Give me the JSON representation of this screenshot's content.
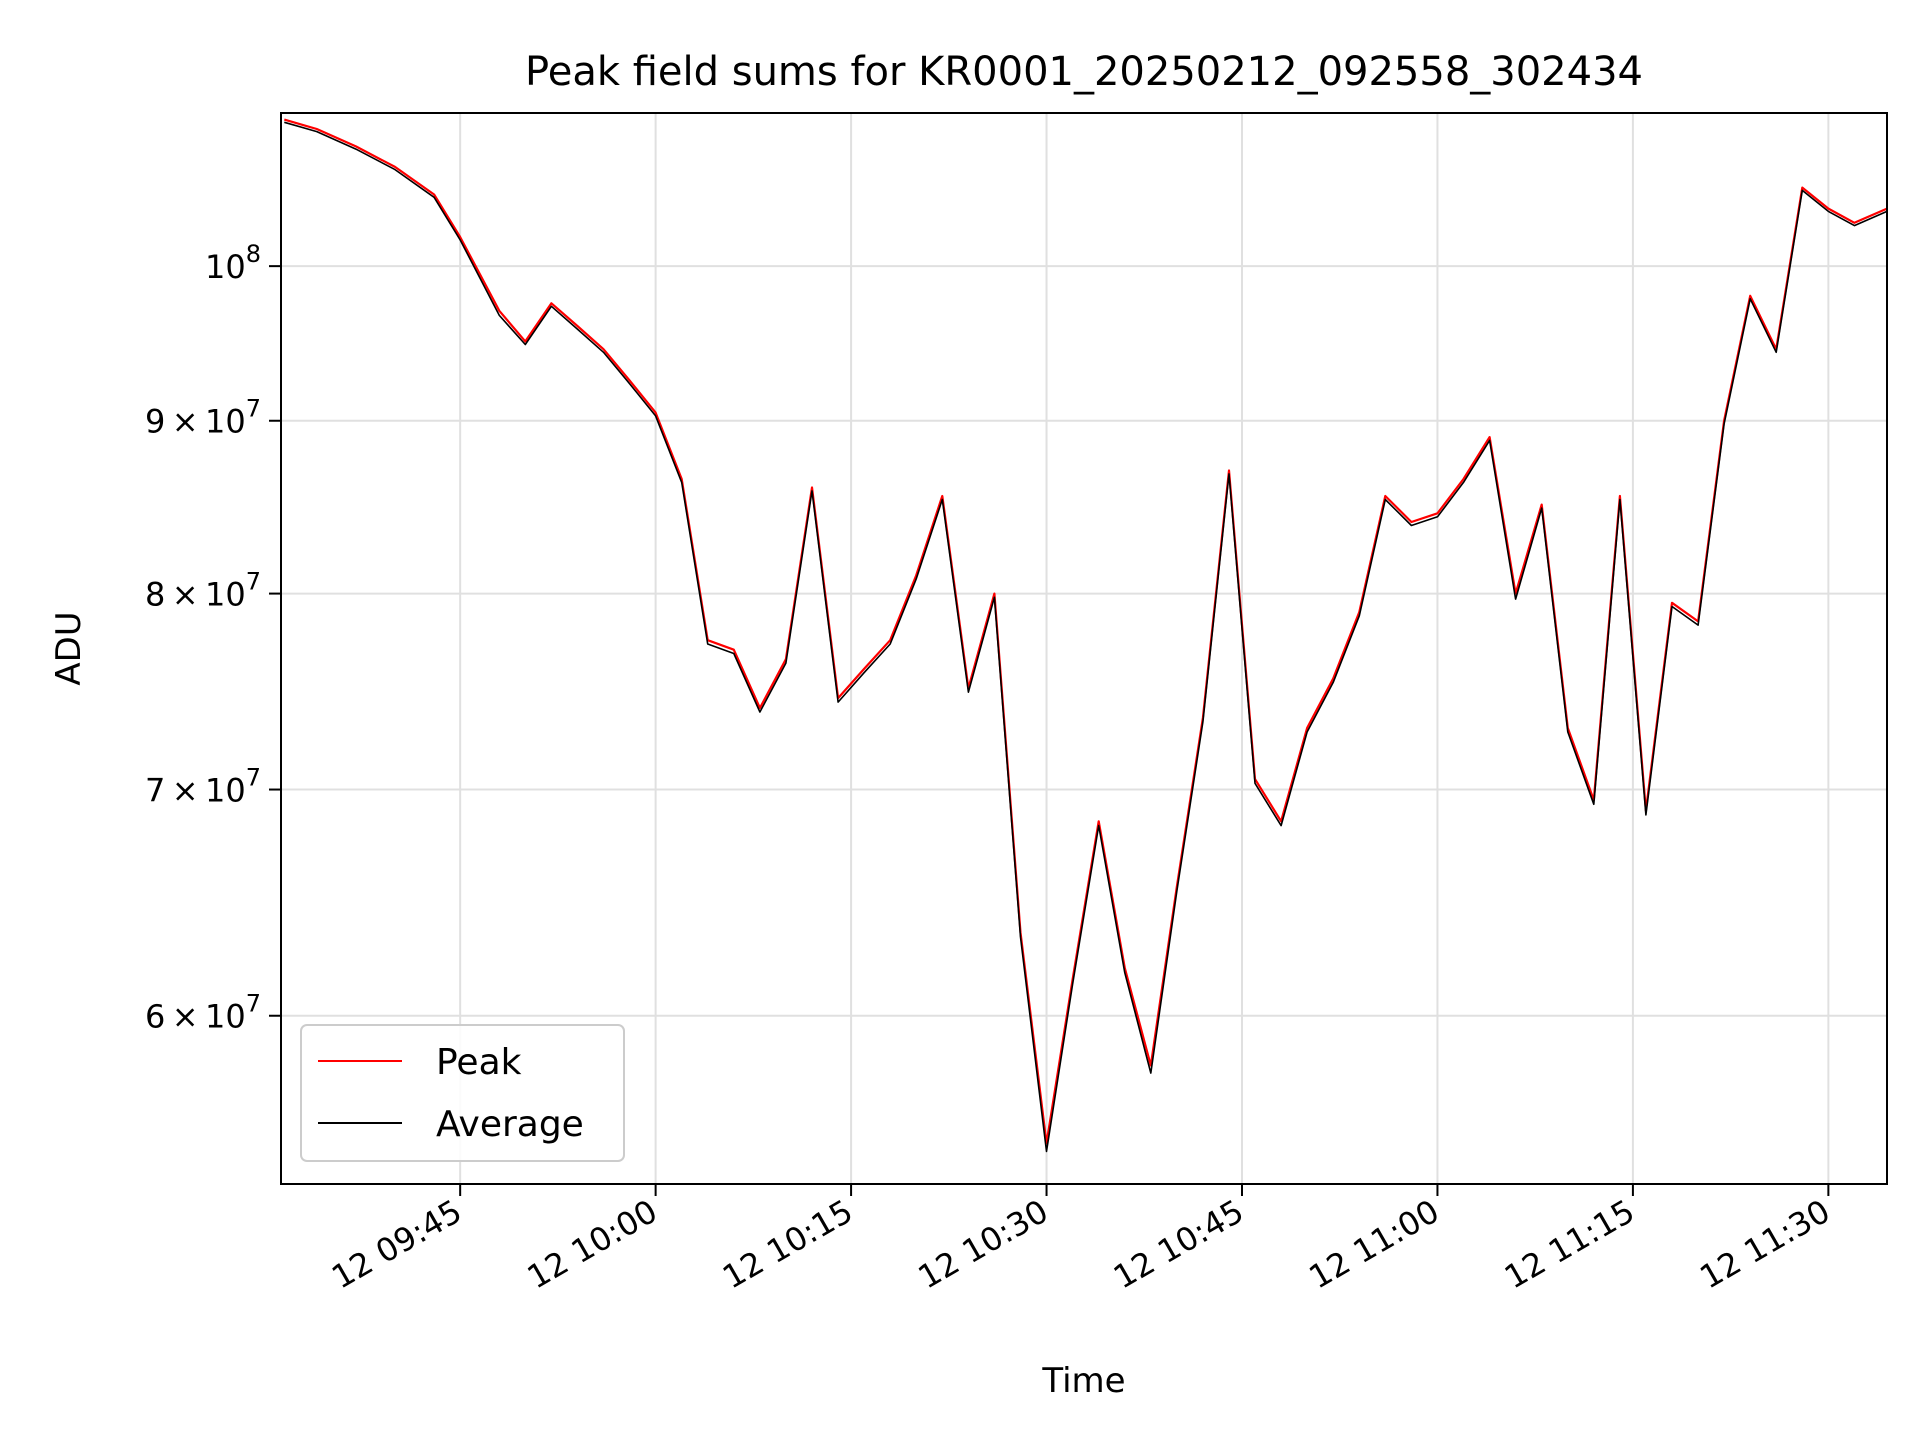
{
  "chart_data": {
    "type": "line",
    "title": "Peak field sums for KR0001_20250212_092558_302434",
    "xlabel": "Time",
    "ylabel": "ADU",
    "yscale": "log",
    "xlim": [
      "12 09:31:15",
      "12 11:34:30"
    ],
    "ylim": [
      53500000,
      111000000
    ],
    "grid": true,
    "legend_position": "lower-left",
    "x_ticks": [
      "12 09:45",
      "12 10:00",
      "12 10:15",
      "12 10:30",
      "12 10:45",
      "12 11:00",
      "12 11:15",
      "12 11:30"
    ],
    "y_ticks": [
      {
        "value": 60000000,
        "mantissa": "6",
        "base": "10",
        "exp": "7"
      },
      {
        "value": 70000000,
        "mantissa": "7",
        "base": "10",
        "exp": "7"
      },
      {
        "value": 80000000,
        "mantissa": "8",
        "base": "10",
        "exp": "7"
      },
      {
        "value": 90000000,
        "mantissa": "9",
        "base": "10",
        "exp": "7"
      },
      {
        "value": 100000000,
        "mantissa": "",
        "base": "10",
        "exp": "8"
      }
    ],
    "x": [
      "09:31:30",
      "09:34:00",
      "09:37:00",
      "09:40:00",
      "09:43:00",
      "09:45:00",
      "09:48:00",
      "09:50:00",
      "09:52:00",
      "09:54:00",
      "09:56:00",
      "09:58:00",
      "10:00:00",
      "10:02:00",
      "10:04:00",
      "10:06:00",
      "10:08:00",
      "10:10:00",
      "10:12:00",
      "10:14:00",
      "10:16:00",
      "10:18:00",
      "10:20:00",
      "10:22:00",
      "10:24:00",
      "10:26:00",
      "10:28:00",
      "10:30:00",
      "10:32:00",
      "10:34:00",
      "10:36:00",
      "10:38:00",
      "10:40:00",
      "10:42:00",
      "10:44:00",
      "10:46:00",
      "10:48:00",
      "10:50:00",
      "10:52:00",
      "10:54:00",
      "10:56:00",
      "10:58:00",
      "11:00:00",
      "11:02:00",
      "11:04:00",
      "11:06:00",
      "11:08:00",
      "11:10:00",
      "11:12:00",
      "11:14:00",
      "11:16:00",
      "11:18:00",
      "11:20:00",
      "11:22:00",
      "11:24:00",
      "11:26:00",
      "11:28:00",
      "11:30:00",
      "11:32:00",
      "11:34:30"
    ],
    "series": [
      {
        "name": "Peak",
        "color": "#ff0000",
        "values": [
          110500000,
          109800000,
          108500000,
          107000000,
          105000000,
          102000000,
          97000000,
          95000000,
          97500000,
          96000000,
          94500000,
          92500000,
          90500000,
          86500000,
          77500000,
          77000000,
          74000000,
          76500000,
          86000000,
          74500000,
          76000000,
          77500000,
          81000000,
          85500000,
          75000000,
          80000000,
          63500000,
          55000000,
          61500000,
          68500000,
          62000000,
          58000000,
          65500000,
          73500000,
          87000000,
          70500000,
          68500000,
          73000000,
          75500000,
          79000000,
          85500000,
          84000000,
          84500000,
          86500000,
          89000000,
          80000000,
          85000000,
          73000000,
          69500000,
          85500000,
          69000000,
          79500000,
          78500000,
          90000000,
          98000000,
          94500000,
          105500000,
          104000000,
          103000000,
          104000000
        ]
      },
      {
        "name": "Average",
        "color": "#000000",
        "values": [
          110300000,
          109600000,
          108300000,
          106800000,
          104800000,
          101800000,
          96700000,
          94800000,
          97300000,
          95800000,
          94300000,
          92300000,
          90300000,
          86300000,
          77300000,
          76800000,
          73800000,
          76300000,
          85800000,
          74300000,
          75800000,
          77300000,
          80800000,
          85300000,
          74800000,
          79800000,
          63300000,
          54700000,
          61300000,
          68300000,
          61800000,
          57700000,
          65300000,
          73300000,
          86800000,
          70300000,
          68300000,
          72800000,
          75300000,
          78800000,
          85300000,
          83800000,
          84300000,
          86300000,
          88800000,
          79700000,
          84800000,
          72800000,
          69300000,
          85300000,
          68800000,
          79300000,
          78300000,
          89800000,
          97800000,
          94300000,
          105300000,
          103800000,
          102800000,
          103800000
        ]
      }
    ]
  }
}
